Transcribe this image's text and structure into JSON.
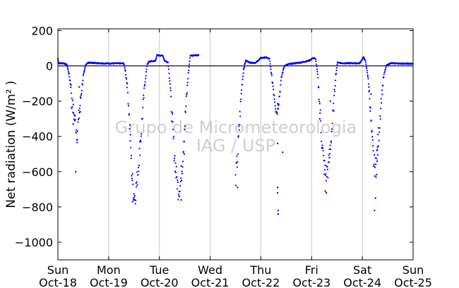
{
  "chart_data": {
    "type": "scatter",
    "ylabel": "Net radiation (W/m² )",
    "watermark": [
      "Grupo de Micrometeorologia",
      "IAG / USP"
    ],
    "ylim": [
      -1100,
      210
    ],
    "xlim": [
      0,
      7
    ],
    "yticks": [
      200,
      0,
      -200,
      -400,
      -600,
      -800,
      -1000
    ],
    "ytick_labels": [
      "200",
      "0",
      "−200",
      "−400",
      "−600",
      "−800",
      "−1000"
    ],
    "xticks": [
      {
        "x": 0,
        "day": "Sun",
        "date": "Oct-18"
      },
      {
        "x": 1,
        "day": "Mon",
        "date": "Oct-19"
      },
      {
        "x": 2,
        "day": "Tue",
        "date": "Oct-20"
      },
      {
        "x": 3,
        "day": "Wed",
        "date": "Oct-21"
      },
      {
        "x": 4,
        "day": "Thu",
        "date": "Oct-22"
      },
      {
        "x": 5,
        "day": "Fri",
        "date": "Oct-23"
      },
      {
        "x": 6,
        "day": "Sat",
        "date": "Oct-24"
      },
      {
        "x": 7,
        "day": "Sun",
        "date": "Oct-25"
      }
    ],
    "grid": "vertical",
    "zero_line": true,
    "series_color": "#0000ff",
    "profile": [
      [
        0.0,
        40
      ],
      [
        0.02,
        15
      ],
      [
        0.12,
        15
      ],
      [
        0.18,
        5
      ],
      [
        0.22,
        -50
      ],
      [
        0.26,
        -120
      ],
      [
        0.29,
        -230
      ],
      [
        0.33,
        -300
      ],
      [
        0.38,
        -380
      ],
      [
        0.41,
        -300
      ],
      [
        0.45,
        -180
      ],
      [
        0.5,
        -60
      ],
      [
        0.55,
        10
      ],
      [
        0.6,
        18
      ],
      [
        0.95,
        14
      ],
      [
        1.3,
        14
      ],
      [
        1.33,
        -30
      ],
      [
        1.37,
        -120
      ],
      [
        1.4,
        -250
      ],
      [
        1.43,
        -440
      ],
      [
        1.46,
        -620
      ],
      [
        1.49,
        -720
      ],
      [
        1.52,
        -740
      ],
      [
        1.56,
        -650
      ],
      [
        1.6,
        -520
      ],
      [
        1.64,
        -380
      ],
      [
        1.68,
        -220
      ],
      [
        1.72,
        -80
      ],
      [
        1.76,
        10
      ],
      [
        1.8,
        25
      ],
      [
        1.92,
        28
      ],
      [
        1.95,
        60
      ],
      [
        2.07,
        58
      ],
      [
        2.1,
        30
      ],
      [
        2.17,
        20
      ],
      [
        2.21,
        -100
      ],
      [
        2.25,
        -300
      ],
      [
        2.29,
        -480
      ],
      [
        2.33,
        -610
      ],
      [
        2.37,
        -700
      ],
      [
        2.41,
        -680
      ],
      [
        2.45,
        -560
      ],
      [
        2.49,
        -380
      ],
      [
        2.53,
        -200
      ],
      [
        2.57,
        -40
      ],
      [
        2.61,
        60
      ],
      [
        2.65,
        58
      ],
      [
        2.7,
        62
      ],
      [
        2.78,
        60
      ],
      [
        3.5,
        -650
      ],
      [
        3.54,
        -520
      ],
      [
        3.58,
        -320
      ],
      [
        3.62,
        -130
      ],
      [
        3.66,
        -20
      ],
      [
        3.7,
        30
      ],
      [
        3.74,
        25
      ],
      [
        3.8,
        18
      ],
      [
        3.9,
        18
      ],
      [
        4.0,
        45
      ],
      [
        4.1,
        48
      ],
      [
        4.17,
        40
      ],
      [
        4.21,
        -50
      ],
      [
        4.26,
        -160
      ],
      [
        4.31,
        -260
      ],
      [
        4.36,
        -180
      ],
      [
        4.41,
        -60
      ],
      [
        4.46,
        0
      ],
      [
        4.55,
        10
      ],
      [
        4.8,
        20
      ],
      [
        4.95,
        30
      ],
      [
        5.03,
        45
      ],
      [
        5.08,
        40
      ],
      [
        5.12,
        -50
      ],
      [
        5.16,
        -220
      ],
      [
        5.2,
        -420
      ],
      [
        5.24,
        -560
      ],
      [
        5.28,
        -620
      ],
      [
        5.33,
        -580
      ],
      [
        5.38,
        -420
      ],
      [
        5.43,
        -250
      ],
      [
        5.47,
        -70
      ],
      [
        5.51,
        20
      ],
      [
        5.6,
        15
      ],
      [
        5.95,
        15
      ],
      [
        6.02,
        50
      ],
      [
        6.06,
        30
      ],
      [
        6.11,
        -60
      ],
      [
        6.15,
        -200
      ],
      [
        6.19,
        -420
      ],
      [
        6.23,
        -560
      ],
      [
        6.27,
        -580
      ],
      [
        6.32,
        -400
      ],
      [
        6.37,
        -200
      ],
      [
        6.42,
        -60
      ],
      [
        6.47,
        0
      ],
      [
        6.55,
        15
      ],
      [
        7.0,
        12
      ]
    ],
    "outliers": [
      [
        0.27,
        -240
      ],
      [
        0.3,
        -330
      ],
      [
        0.35,
        -600
      ],
      [
        0.38,
        -420
      ],
      [
        0.42,
        -120
      ],
      [
        0.44,
        -260
      ],
      [
        1.47,
        -770
      ],
      [
        2.43,
        -760
      ],
      [
        2.49,
        -500
      ],
      [
        3.54,
        -690
      ],
      [
        4.33,
        -440
      ],
      [
        4.33,
        -690
      ],
      [
        4.33,
        -720
      ],
      [
        4.34,
        -820
      ],
      [
        4.34,
        -840
      ],
      [
        4.43,
        -490
      ],
      [
        5.16,
        -300
      ],
      [
        5.27,
        -710
      ],
      [
        5.29,
        -720
      ],
      [
        5.35,
        -520
      ],
      [
        5.37,
        -200
      ],
      [
        6.13,
        -120
      ],
      [
        6.17,
        -160
      ],
      [
        6.24,
        -820
      ],
      [
        6.26,
        -750
      ],
      [
        6.29,
        -540
      ],
      [
        6.3,
        -460
      ]
    ],
    "gaps": [
      [
        2.78,
        3.5
      ]
    ]
  }
}
